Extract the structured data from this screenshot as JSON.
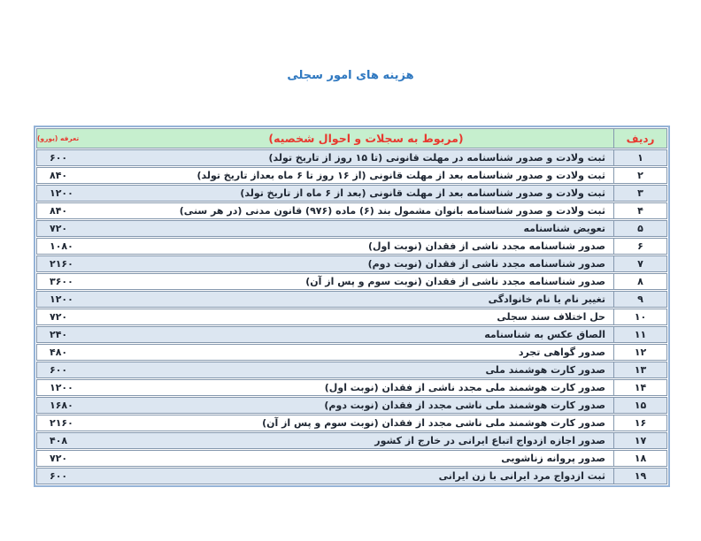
{
  "page": {
    "title": "هزینه های امور سجلی"
  },
  "colors": {
    "header_bg": "#c6efce",
    "header_text": "#e8392f",
    "row_alt": "#dce6f1",
    "border_outer": "#95b3d7",
    "border_inner": "#8598ae",
    "title": "#2f78c0",
    "body_text": "#1f2733"
  },
  "table": {
    "header": {
      "row_no": "ردیف",
      "description": "(مربوط به سجلات و احوال شخصیه)",
      "fee": "تعرفه (یورو)"
    },
    "rows": [
      {
        "no": "۱",
        "description": "ثبت ولادت و صدور شناسنامه در مهلت قانونی (تا ۱۵ روز از تاریخ تولد)",
        "fee": "۶۰۰"
      },
      {
        "no": "۲",
        "description": "ثبت ولادت و صدور شناسنامه بعد از مهلت قانونی (از ۱۶ روز تا ۶ ماه بعداز تاریخ تولد)",
        "fee": "۸۴۰"
      },
      {
        "no": "۳",
        "description": "ثبت ولادت و صدور شناسنامه بعد از مهلت قانونی (بعد از ۶ ماه از تاریخ تولد)",
        "fee": "۱۲۰۰"
      },
      {
        "no": "۴",
        "description": "ثبت ولادت و صدور شناسنامه بانوان مشمول بند (۶) ماده (۹۷۶) قانون مدنی (در هر سنی)",
        "fee": "۸۴۰"
      },
      {
        "no": "۵",
        "description": "تعویض شناسنامه",
        "fee": "۷۲۰"
      },
      {
        "no": "۶",
        "description": "صدور شناسنامه مجدد ناشی از فقدان (نوبت اول)",
        "fee": "۱۰۸۰"
      },
      {
        "no": "۷",
        "description": "صدور شناسنامه مجدد ناشی از فقدان (نوبت دوم)",
        "fee": "۲۱۶۰"
      },
      {
        "no": "۸",
        "description": "صدور شناسنامه مجدد ناشی از فقدان (نوبت سوم و پس از آن)",
        "fee": "۳۶۰۰"
      },
      {
        "no": "۹",
        "description": "تغییر نام یا نام خانوادگی",
        "fee": "۱۲۰۰"
      },
      {
        "no": "۱۰",
        "description": "حل اختلاف سند سجلی",
        "fee": "۷۲۰"
      },
      {
        "no": "۱۱",
        "description": "الصاق عکس به شناسنامه",
        "fee": "۲۴۰"
      },
      {
        "no": "۱۲",
        "description": "صدور گواهی تجرد",
        "fee": "۴۸۰"
      },
      {
        "no": "۱۳",
        "description": "صدور کارت هوشمند ملی",
        "fee": "۶۰۰"
      },
      {
        "no": "۱۴",
        "description": "صدور کارت هوشمند ملی مجدد ناشی از فقدان (نوبت اول)",
        "fee": "۱۲۰۰"
      },
      {
        "no": "۱۵",
        "description": "صدور کارت هوشمند ملی ناشی مجدد از فقدان (نوبت دوم)",
        "fee": "۱۶۸۰"
      },
      {
        "no": "۱۶",
        "description": "صدور کارت هوشمند ملی ناشی مجدد از فقدان (نوبت سوم و پس از آن)",
        "fee": "۲۱۶۰"
      },
      {
        "no": "۱۷",
        "description": "صدور اجازه ازدواج اتباع ایرانی در خارج از کشور",
        "fee": "۴۰۸"
      },
      {
        "no": "۱۸",
        "description": "صدور پروانه زناشویی",
        "fee": "۷۲۰"
      },
      {
        "no": "۱۹",
        "description": "ثبت ازدواج مرد ایرانی با زن ایرانی",
        "fee": "۶۰۰"
      }
    ]
  }
}
